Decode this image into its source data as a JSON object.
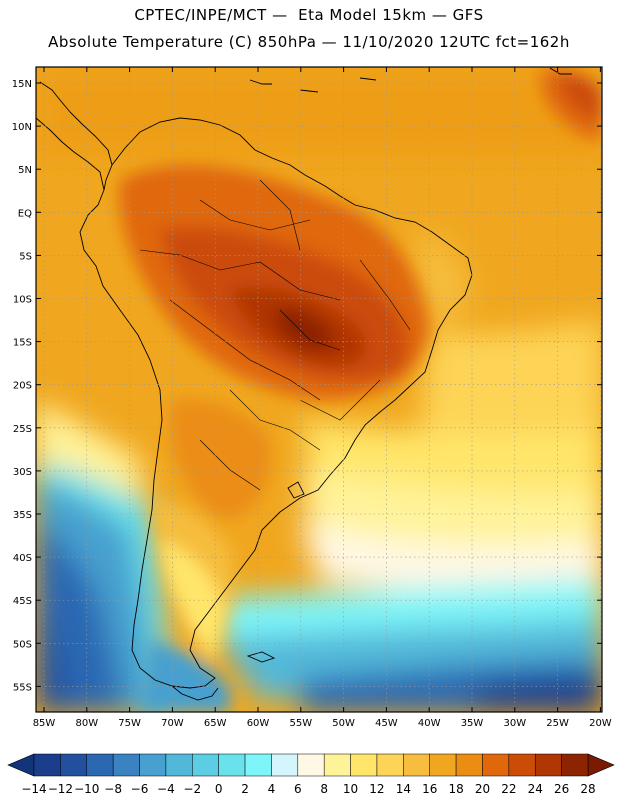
{
  "title_line1": "CPTEC/INPE/MCT —  Eta Model 15km — GFS",
  "title_line2": "Absolute Temperature (C) 850hPa — 11/10/2020 12UTC fct=162h",
  "lat_labels": [
    "15N",
    "10N",
    "5N",
    "EQ",
    "5S",
    "10S",
    "15S",
    "20S",
    "25S",
    "30S",
    "35S",
    "40S",
    "45S",
    "50S",
    "55S"
  ],
  "lon_labels": [
    "85W",
    "80W",
    "75W",
    "70W",
    "65W",
    "60W",
    "55W",
    "50W",
    "45W",
    "40W",
    "35W",
    "30W",
    "25W",
    "20W"
  ],
  "colorbar": {
    "labels": [
      "-14",
      "-12",
      "-10",
      "-8",
      "-6",
      "-4",
      "-2",
      "0",
      "2",
      "4",
      "6",
      "8",
      "10",
      "12",
      "14",
      "16",
      "18",
      "20",
      "22",
      "24",
      "26",
      "28"
    ],
    "colors": [
      "#1a3d8c",
      "#22509f",
      "#2c68b2",
      "#3a82c2",
      "#47a0cf",
      "#52b8d9",
      "#5ccde3",
      "#6ae2ec",
      "#7ef5f8",
      "#d2f6fc",
      "#fff8e4",
      "#fff39a",
      "#ffe66a",
      "#fdd457",
      "#f6bd3e",
      "#f0a71f",
      "#eb8d12",
      "#e0680a",
      "#cb4c07",
      "#b03604",
      "#8c2402"
    ],
    "low_color": "#12347a",
    "high_color": "#7a1a01"
  }
}
